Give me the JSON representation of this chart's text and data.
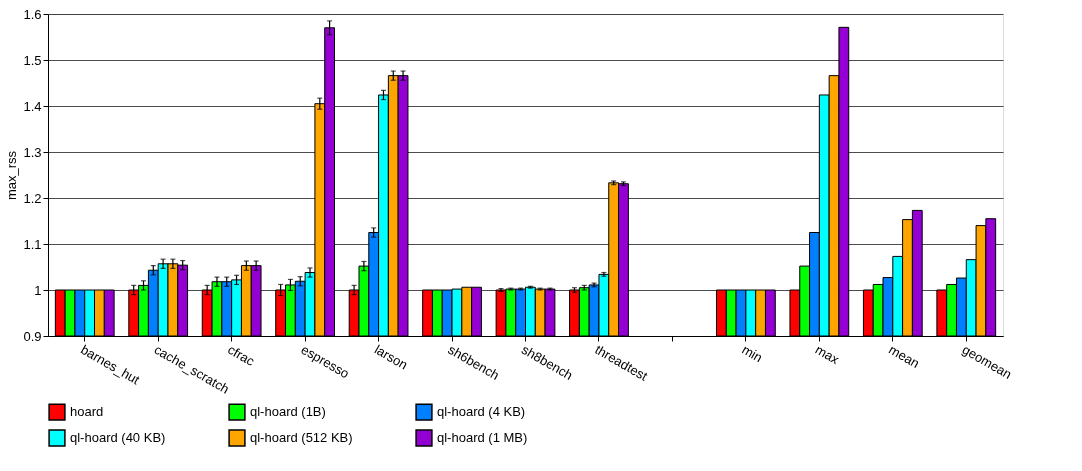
{
  "chart_data": {
    "type": "bar",
    "ylabel": "max_rss",
    "ylim": [
      0.9,
      1.6
    ],
    "yticks": [
      0.9,
      1,
      1.1,
      1.2,
      1.3,
      1.4,
      1.5,
      1.6
    ],
    "grid": "y",
    "legend": "bottom",
    "categories": [
      "barnes_hut",
      "cache_scratch",
      "cfrac",
      "espresso",
      "larson",
      "sh6bench",
      "sh8bench",
      "threadtest",
      null,
      "min",
      "max",
      "mean",
      "geomean"
    ],
    "series": [
      {
        "name": "hoard",
        "color": "#ff0000",
        "values": [
          1.0,
          1.0,
          1.0,
          1.0,
          1.0,
          1.0,
          1.0,
          1.0,
          null,
          1.0,
          1.0,
          1.0,
          1.0
        ],
        "errors": [
          null,
          0.01,
          0.01,
          0.012,
          0.01,
          null,
          0.003,
          0.005,
          null,
          null,
          null,
          null,
          null
        ]
      },
      {
        "name": "ql-hoard (1B)",
        "color": "#00ff00",
        "values": [
          1.0,
          1.01,
          1.018,
          1.011,
          1.052,
          1.0,
          1.002,
          1.005,
          null,
          1.0,
          1.052,
          1.012,
          1.012
        ],
        "errors": [
          null,
          0.01,
          0.01,
          0.012,
          0.01,
          null,
          0.002,
          0.005,
          null,
          null,
          null,
          null,
          null
        ]
      },
      {
        "name": "ql-hoard (4 KB)",
        "color": "#0080ff",
        "values": [
          1.0,
          1.043,
          1.018,
          1.019,
          1.125,
          1.0,
          1.002,
          1.011,
          null,
          1.0,
          1.125,
          1.027,
          1.026
        ],
        "errors": [
          null,
          0.01,
          0.01,
          0.01,
          0.01,
          null,
          0.002,
          0.004,
          null,
          null,
          null,
          null,
          null
        ]
      },
      {
        "name": "ql-hoard (40 KB)",
        "color": "#00ffff",
        "values": [
          1.0,
          1.057,
          1.022,
          1.038,
          1.424,
          1.002,
          1.006,
          1.034,
          null,
          1.0,
          1.424,
          1.073,
          1.066
        ],
        "errors": [
          null,
          0.01,
          0.01,
          0.01,
          0.01,
          null,
          0.002,
          0.004,
          null,
          null,
          null,
          null,
          null
        ]
      },
      {
        "name": "ql-hoard (512 KB)",
        "color": "#ffa500",
        "values": [
          1.0,
          1.057,
          1.053,
          1.405,
          1.466,
          1.006,
          1.002,
          1.233,
          null,
          1.0,
          1.466,
          1.153,
          1.14
        ],
        "errors": [
          null,
          0.01,
          0.01,
          0.012,
          0.01,
          null,
          0.002,
          0.004,
          null,
          null,
          null,
          null,
          null
        ]
      },
      {
        "name": "ql-hoard (1 MB)",
        "color": "#9400d3",
        "values": [
          1.0,
          1.054,
          1.053,
          1.57,
          1.466,
          1.006,
          1.002,
          1.231,
          null,
          1.0,
          1.571,
          1.173,
          1.155
        ],
        "errors": [
          null,
          0.01,
          0.01,
          0.015,
          0.01,
          null,
          0.002,
          0.004,
          null,
          null,
          null,
          null,
          null
        ]
      }
    ]
  }
}
